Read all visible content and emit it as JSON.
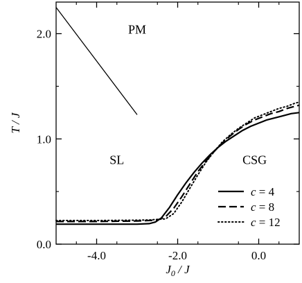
{
  "chart_data": {
    "type": "line",
    "xlabel_main": "J",
    "xlabel_sub": "0",
    "xlabel_rest": " / J",
    "ylabel": "T / J",
    "xlim": [
      -5.0,
      1.0
    ],
    "ylim": [
      0.0,
      2.3
    ],
    "x_ticks": [
      {
        "value": -4.0,
        "label": "-4.0"
      },
      {
        "value": -2.0,
        "label": "-2.0"
      },
      {
        "value": 0.0,
        "label": "0.0"
      }
    ],
    "y_ticks": [
      {
        "value": 0.0,
        "label": "0.0"
      },
      {
        "value": 1.0,
        "label": "1.0"
      },
      {
        "value": 2.0,
        "label": "2.0"
      }
    ],
    "grid": false,
    "legend_position": "bottom-right",
    "region_labels": [
      {
        "text": "PM",
        "x": -3.0,
        "y": 2.0
      },
      {
        "text": "SL",
        "x": -3.5,
        "y": 0.76
      },
      {
        "text": "CSG",
        "x": -0.1,
        "y": 0.76
      }
    ],
    "series": [
      {
        "name": "c = 4",
        "legend_var": "c",
        "legend_val": "= 4",
        "style": "solid",
        "points": [
          [
            -5.0,
            0.19
          ],
          [
            -4.0,
            0.19
          ],
          [
            -3.0,
            0.19
          ],
          [
            -2.7,
            0.195
          ],
          [
            -2.55,
            0.21
          ],
          [
            -2.4,
            0.25
          ],
          [
            -2.2,
            0.35
          ],
          [
            -2.0,
            0.47
          ],
          [
            -1.8,
            0.58
          ],
          [
            -1.6,
            0.68
          ],
          [
            -1.4,
            0.77
          ],
          [
            -1.2,
            0.85
          ],
          [
            -1.0,
            0.92
          ],
          [
            -0.8,
            0.98
          ],
          [
            -0.6,
            1.03
          ],
          [
            -0.4,
            1.08
          ],
          [
            -0.2,
            1.12
          ],
          [
            0.0,
            1.15
          ],
          [
            0.2,
            1.18
          ],
          [
            0.4,
            1.2
          ],
          [
            0.6,
            1.22
          ],
          [
            0.8,
            1.24
          ],
          [
            1.0,
            1.25
          ]
        ]
      },
      {
        "name": "c = 8",
        "legend_var": "c",
        "legend_val": "= 8",
        "style": "dashed",
        "points": [
          [
            -5.0,
            0.215
          ],
          [
            -4.0,
            0.215
          ],
          [
            -3.0,
            0.22
          ],
          [
            -2.7,
            0.225
          ],
          [
            -2.5,
            0.23
          ],
          [
            -2.3,
            0.26
          ],
          [
            -2.1,
            0.34
          ],
          [
            -1.9,
            0.45
          ],
          [
            -1.7,
            0.57
          ],
          [
            -1.5,
            0.69
          ],
          [
            -1.3,
            0.79
          ],
          [
            -1.1,
            0.88
          ],
          [
            -0.9,
            0.96
          ],
          [
            -0.7,
            1.03
          ],
          [
            -0.5,
            1.09
          ],
          [
            -0.3,
            1.14
          ],
          [
            -0.1,
            1.18
          ],
          [
            0.1,
            1.21
          ],
          [
            0.3,
            1.24
          ],
          [
            0.5,
            1.26
          ],
          [
            0.7,
            1.29
          ],
          [
            0.9,
            1.31
          ],
          [
            1.0,
            1.32
          ]
        ]
      },
      {
        "name": "c = 12",
        "legend_var": "c",
        "legend_val": "= 12",
        "style": "dotted",
        "points": [
          [
            -5.0,
            0.225
          ],
          [
            -4.0,
            0.225
          ],
          [
            -3.0,
            0.228
          ],
          [
            -2.7,
            0.23
          ],
          [
            -2.5,
            0.235
          ],
          [
            -2.3,
            0.24
          ],
          [
            -2.1,
            0.29
          ],
          [
            -1.9,
            0.4
          ],
          [
            -1.7,
            0.53
          ],
          [
            -1.5,
            0.66
          ],
          [
            -1.3,
            0.78
          ],
          [
            -1.1,
            0.88
          ],
          [
            -0.9,
            0.97
          ],
          [
            -0.7,
            1.04
          ],
          [
            -0.5,
            1.1
          ],
          [
            -0.3,
            1.15
          ],
          [
            -0.1,
            1.2
          ],
          [
            0.1,
            1.23
          ],
          [
            0.3,
            1.26
          ],
          [
            0.5,
            1.29
          ],
          [
            0.7,
            1.31
          ],
          [
            0.9,
            1.34
          ],
          [
            1.0,
            1.35
          ]
        ]
      },
      {
        "name": "",
        "style": "thin-solid",
        "points": [
          [
            -5.0,
            2.25
          ],
          [
            -3.0,
            1.23
          ]
        ]
      }
    ]
  }
}
